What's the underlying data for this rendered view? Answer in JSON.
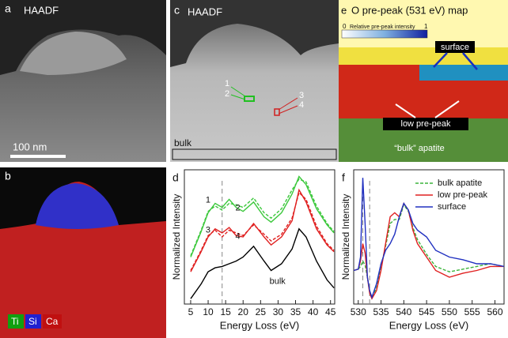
{
  "panels": {
    "a": {
      "label": "a",
      "title": "HAADF",
      "scale_bar": "100 nm"
    },
    "b": {
      "label": "b",
      "legend": [
        "Ti",
        "Si",
        "Ca"
      ]
    },
    "c": {
      "label": "c",
      "title": "HAADF",
      "markers": [
        "1",
        "2",
        "3",
        "4"
      ],
      "region": "bulk"
    },
    "e": {
      "label": "e",
      "title": "O pre-peak (531 eV) map",
      "colorbar_min": "0",
      "colorbar_label": "Relative pre-peak intensity",
      "colorbar_max": "1",
      "annotations": [
        "surface",
        "low pre-peak",
        "“bulk” apatite"
      ]
    }
  },
  "chart_data": [
    {
      "type": "line",
      "panel": "d",
      "xlabel": "Energy Loss (eV)",
      "ylabel": "Normalized Intensity",
      "xlim": [
        3.2,
        46.2
      ],
      "ylim": [
        0,
        10
      ],
      "xticks": [
        5,
        10,
        15,
        20,
        25,
        30,
        35,
        40,
        45
      ],
      "vlines": [
        14
      ],
      "x": [
        5,
        8,
        10,
        12,
        14,
        16,
        18,
        20,
        23,
        26,
        28,
        31,
        34,
        36,
        38,
        41,
        44,
        46
      ],
      "series": [
        {
          "name": "1",
          "color": "#3cc83c",
          "dash": false,
          "values": [
            3.5,
            5.4,
            6.8,
            7.5,
            7.2,
            7.8,
            7.2,
            6.9,
            7.6,
            6.5,
            6.1,
            6.8,
            8.2,
            9.5,
            8.9,
            7.1,
            5.9,
            5.3
          ]
        },
        {
          "name": "2",
          "color": "#3cc83c",
          "dash": true,
          "values": [
            3.6,
            5.5,
            6.9,
            7.3,
            7.0,
            7.5,
            7.4,
            7.2,
            7.9,
            6.8,
            6.4,
            7.1,
            8.5,
            9.3,
            9.1,
            7.3,
            6.0,
            5.4
          ]
        },
        {
          "name": "3",
          "color": "#e02020",
          "dash": false,
          "values": [
            2.4,
            3.9,
            5.0,
            5.6,
            5.3,
            5.7,
            5.1,
            5.0,
            6.0,
            5.0,
            4.4,
            5.0,
            6.2,
            8.5,
            7.6,
            5.6,
            4.4,
            3.9
          ]
        },
        {
          "name": "4",
          "color": "#e02020",
          "dash": true,
          "values": [
            2.5,
            4.0,
            5.1,
            5.5,
            5.0,
            5.5,
            5.3,
            5.1,
            5.9,
            5.2,
            4.7,
            5.2,
            6.4,
            8.3,
            7.8,
            5.8,
            4.5,
            4.0
          ]
        },
        {
          "name": "bulk",
          "color": "#000000",
          "dash": false,
          "values": [
            0.4,
            1.5,
            2.4,
            2.7,
            2.8,
            3.0,
            3.2,
            3.5,
            4.3,
            3.2,
            2.5,
            3.0,
            4.1,
            5.6,
            5.0,
            3.2,
            1.8,
            1.2
          ]
        }
      ]
    },
    {
      "type": "line",
      "panel": "f",
      "xlabel": "Energy Loss (eV)",
      "ylabel": "Normalized Intensity",
      "xlim": [
        529,
        562
      ],
      "ylim": [
        0,
        10
      ],
      "xticks": [
        530,
        535,
        540,
        545,
        550,
        555,
        560
      ],
      "vlines": [
        531,
        532.5
      ],
      "legend": "upper right",
      "x": [
        529,
        530,
        530.5,
        531,
        531.5,
        532,
        532.5,
        533,
        534,
        535,
        536,
        537,
        538,
        539,
        540,
        541,
        542,
        543,
        545,
        547,
        550,
        553,
        556,
        559,
        562
      ],
      "series": [
        {
          "name": "bulk apatite",
          "color": "#3cb43c",
          "dash": true,
          "values": [
            2.5,
            2.6,
            2.8,
            3.2,
            2.9,
            2.0,
            0.9,
            0.5,
            1.2,
            2.8,
            4.3,
            6.0,
            6.3,
            6.3,
            7.4,
            6.9,
            5.7,
            4.8,
            3.7,
            2.8,
            2.4,
            2.6,
            2.8,
            3.0,
            2.8
          ]
        },
        {
          "name": "low pre-peak",
          "color": "#e02020",
          "dash": false,
          "values": [
            2.5,
            2.6,
            3.2,
            4.5,
            3.8,
            2.0,
            0.8,
            0.4,
            1.0,
            2.5,
            4.5,
            6.5,
            6.8,
            6.5,
            7.5,
            7.0,
            5.5,
            4.5,
            3.5,
            2.5,
            2.0,
            2.3,
            2.5,
            2.8,
            2.8
          ]
        },
        {
          "name": "surface",
          "color": "#2030c0",
          "dash": false,
          "values": [
            2.5,
            2.6,
            3.5,
            9.4,
            6.0,
            2.0,
            1.0,
            0.5,
            1.5,
            3.0,
            4.0,
            4.5,
            5.2,
            6.5,
            7.5,
            7.0,
            6.0,
            5.5,
            5.0,
            4.0,
            3.5,
            3.3,
            3.0,
            3.0,
            2.8
          ]
        }
      ]
    }
  ]
}
